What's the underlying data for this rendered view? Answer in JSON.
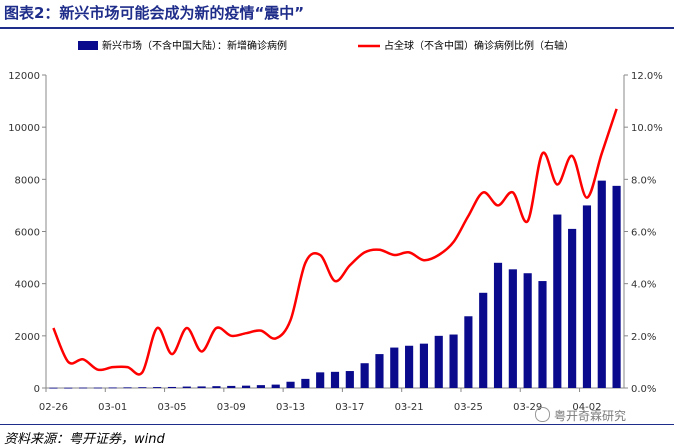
{
  "header": {
    "title": "图表2：新兴市场可能会成为新的疫情“震中”"
  },
  "footer": {
    "source": "资料来源：粤开证券，wind",
    "watermark": "粤开奇霖研究"
  },
  "chart_data": {
    "type": "bar+line",
    "x_tick_labels": [
      "02-26",
      "03-01",
      "03-05",
      "03-09",
      "03-13",
      "03-17",
      "03-21",
      "03-25",
      "03-29",
      "04-02"
    ],
    "categories": [
      "02-26",
      "02-27",
      "02-28",
      "02-29",
      "03-01",
      "03-02",
      "03-03",
      "03-04",
      "03-05",
      "03-06",
      "03-07",
      "03-08",
      "03-09",
      "03-10",
      "03-11",
      "03-12",
      "03-13",
      "03-14",
      "03-15",
      "03-16",
      "03-17",
      "03-18",
      "03-19",
      "03-20",
      "03-21",
      "03-22",
      "03-23",
      "03-24",
      "03-25",
      "03-26",
      "03-27",
      "03-28",
      "03-29",
      "03-30",
      "03-31",
      "04-01",
      "04-02",
      "04-03",
      "04-04"
    ],
    "left_axis": {
      "min": 0,
      "max": 12000,
      "ticks": [
        "0",
        "2000",
        "4000",
        "6000",
        "8000",
        "10000",
        "12000"
      ]
    },
    "right_axis": {
      "min": 0,
      "max": 12,
      "ticks": [
        "0.0%",
        "2.0%",
        "4.0%",
        "6.0%",
        "8.0%",
        "10.0%",
        "12.0%"
      ]
    },
    "series": [
      {
        "name": "新兴市场（不含中国大陆）：新增确诊病例",
        "type": "bar",
        "axis": "left",
        "color": "#0a0a8c",
        "values": [
          10,
          10,
          15,
          15,
          20,
          25,
          30,
          35,
          40,
          55,
          60,
          70,
          80,
          90,
          110,
          130,
          240,
          350,
          600,
          620,
          650,
          950,
          1300,
          1550,
          1620,
          1700,
          2000,
          2050,
          2750,
          3650,
          4800,
          4550,
          4400,
          4100,
          6650,
          6100,
          7000,
          7950,
          7750
        ]
      },
      {
        "name": "占全球（不含中国）确诊病例比例（右轴）",
        "type": "line",
        "axis": "right",
        "color": "#ff0000",
        "values": [
          2.3,
          1.0,
          1.1,
          0.7,
          0.8,
          0.8,
          0.6,
          2.3,
          1.3,
          2.3,
          1.4,
          2.3,
          2.0,
          2.1,
          2.2,
          1.9,
          2.6,
          4.8,
          5.1,
          4.1,
          4.7,
          5.2,
          5.3,
          5.1,
          5.2,
          4.9,
          5.1,
          5.6,
          6.6,
          7.5,
          7.0,
          7.5,
          6.4,
          9.0,
          7.8,
          8.9,
          7.3,
          9.0,
          10.7
        ]
      }
    ]
  }
}
